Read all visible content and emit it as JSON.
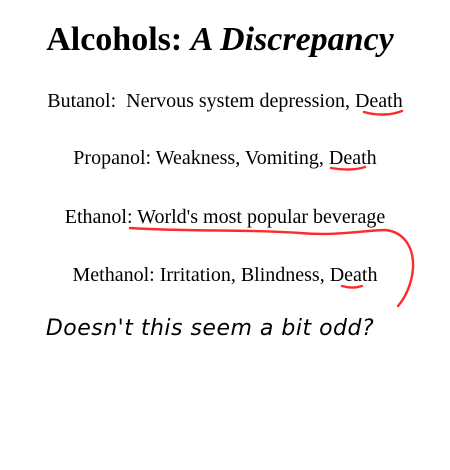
{
  "title": {
    "main": "Alcohols:",
    "sub": "A Discrepancy"
  },
  "lines": [
    {
      "name": "Butanol:",
      "effects": "Nervous system depression, ",
      "highlight": "Death"
    },
    {
      "name": "Propanol:",
      "effects": "Weakness, Vomiting, ",
      "highlight": "Death"
    },
    {
      "name": "Ethanol:",
      "effects": "",
      "highlight": "World's most popular beverage"
    },
    {
      "name": "Methanol:",
      "effects": "Irritation, Blindness, ",
      "highlight": "Death"
    }
  ],
  "question": "Doesn't this seem a bit odd?",
  "colors": {
    "text": "#000000",
    "annotation": "#ff2a2a",
    "background": "#ffffff"
  }
}
